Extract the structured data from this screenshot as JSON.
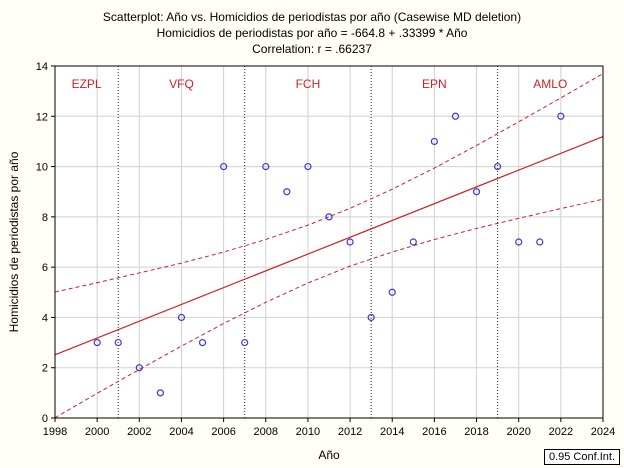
{
  "chart_data": {
    "type": "scatter",
    "title": "Scatterplot: Año      vs. Homicidios de periodistas por año (Casewise MD deletion)",
    "subtitle": "Homicidios de periodistas por año = -664.8 + .33399 * Año",
    "correlation": "Correlation: r = .66237",
    "xlabel": "Año",
    "ylabel": "Homicidios de periodistas por año",
    "xlim": [
      1998,
      2024
    ],
    "ylim": [
      0,
      14
    ],
    "xticks": [
      "1998",
      "2000",
      "2002",
      "2004",
      "2006",
      "2008",
      "2010",
      "2012",
      "2014",
      "2016",
      "2018",
      "2020",
      "2022",
      "2024"
    ],
    "yticks": [
      "0",
      "2",
      "4",
      "6",
      "8",
      "10",
      "12",
      "14"
    ],
    "grid": true,
    "points": {
      "x": [
        2000,
        2001,
        2002,
        2003,
        2004,
        2005,
        2006,
        2007,
        2008,
        2009,
        2010,
        2011,
        2012,
        2013,
        2014,
        2015,
        2016,
        2017,
        2018,
        2019,
        2020,
        2021,
        2022
      ],
      "y": [
        3,
        3,
        2,
        1,
        4,
        3,
        10,
        3,
        10,
        9,
        10,
        8,
        7,
        4,
        5,
        7,
        11,
        12,
        9,
        10,
        7,
        7,
        12
      ]
    },
    "regression": {
      "intercept": -664.8,
      "slope": 0.33399
    },
    "confidence_band": {
      "level": 0.95,
      "x": [
        1998,
        2000,
        2002,
        2004,
        2006,
        2008,
        2010,
        2012,
        2014,
        2016,
        2018,
        2020,
        2022,
        2024
      ],
      "lower": [
        0.01,
        0.98,
        1.93,
        2.86,
        3.76,
        4.6,
        5.37,
        6.04,
        6.6,
        7.1,
        7.54,
        7.94,
        8.33,
        8.7
      ],
      "upper": [
        5.01,
        5.38,
        5.77,
        6.16,
        6.6,
        7.1,
        7.67,
        8.34,
        9.1,
        9.94,
        10.84,
        11.78,
        12.73,
        13.7
      ]
    },
    "periods": [
      {
        "label": "EZPL",
        "start": 1998,
        "end": 2001
      },
      {
        "label": "VFQ",
        "start": 2001,
        "end": 2007
      },
      {
        "label": "FCH",
        "start": 2007,
        "end": 2013
      },
      {
        "label": "EPN",
        "start": 2013,
        "end": 2019
      },
      {
        "label": "AMLO",
        "start": 2019,
        "end": 2024
      }
    ],
    "legend": "0.95 Conf.Int.",
    "legend_placement": "bottom-right",
    "colors": {
      "points": "#3a3acc",
      "line": "#cc2222",
      "period_labels": "#cc2222"
    }
  }
}
